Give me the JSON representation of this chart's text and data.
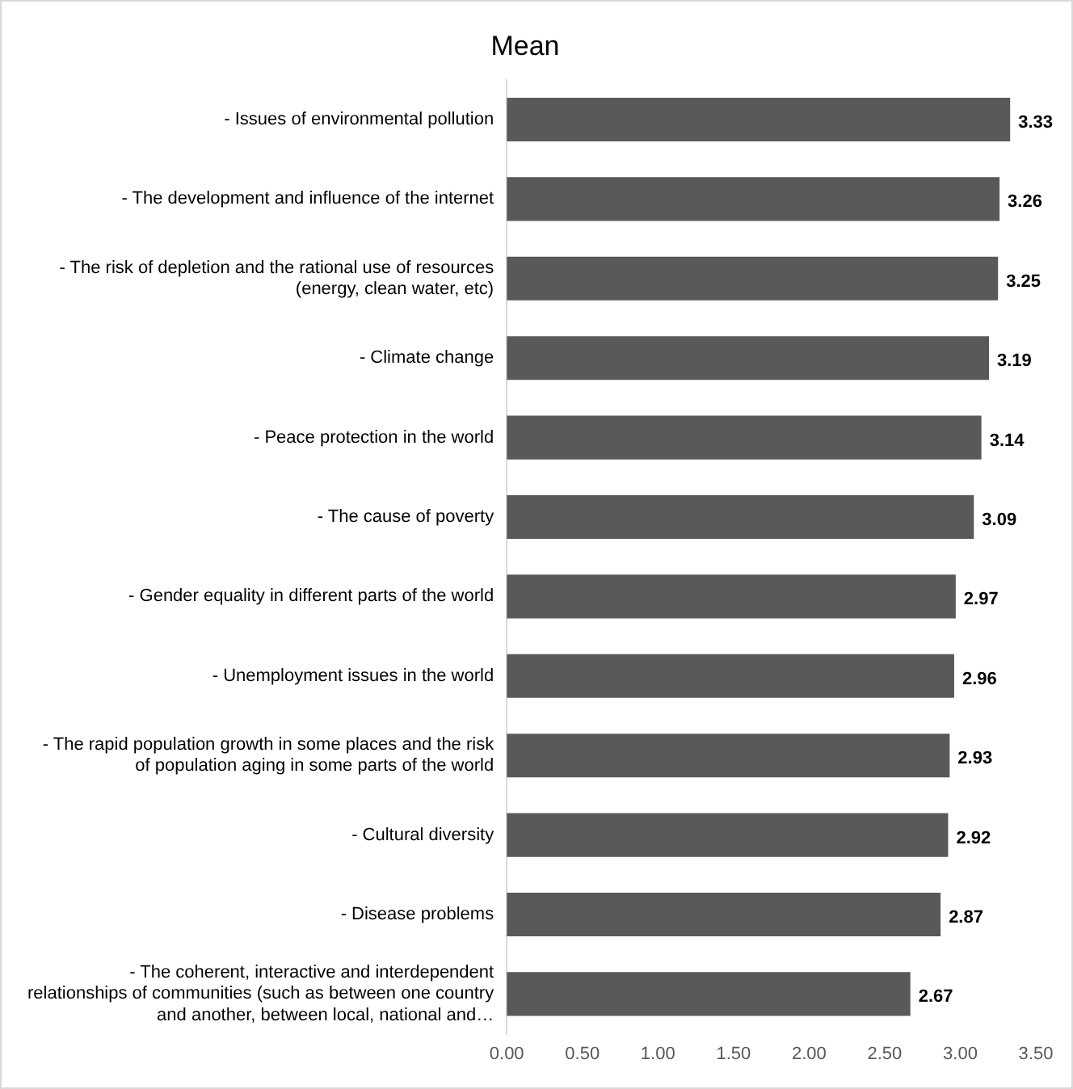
{
  "chart_data": {
    "type": "bar",
    "orientation": "horizontal",
    "title": "Mean",
    "categories": [
      "- Issues of environmental pollution",
      "- The development and influence of the internet",
      "- The risk of depletion and the rational use of resources (energy, clean water, etc)",
      "- Climate change",
      "- Peace protection in the world",
      "- The cause of poverty",
      "- Gender equality in different parts of the world",
      "- Unemployment issues in the world",
      "- The rapid population growth in some places and the risk of population aging in some parts of the world",
      "- Cultural diversity",
      "- Disease problems",
      "- The coherent, interactive and interdependent relationships of communities (such as between one country and another, between local, national and…"
    ],
    "values": [
      3.33,
      3.26,
      3.25,
      3.19,
      3.14,
      3.09,
      2.97,
      2.96,
      2.93,
      2.92,
      2.87,
      2.67
    ],
    "color": "#595959",
    "data_labels": true,
    "grid": false,
    "legend": false,
    "xlim": [
      0,
      3.5
    ],
    "xticks": [
      {
        "value": 0,
        "label": "0.00"
      },
      {
        "value": 0.5,
        "label": "0.50"
      },
      {
        "value": 1,
        "label": "1.00"
      },
      {
        "value": 1.5,
        "label": "1.50"
      },
      {
        "value": 2,
        "label": "2.00"
      },
      {
        "value": 2.5,
        "label": "2.50"
      },
      {
        "value": 3,
        "label": "3.00"
      },
      {
        "value": 3.5,
        "label": "3.50"
      }
    ]
  }
}
